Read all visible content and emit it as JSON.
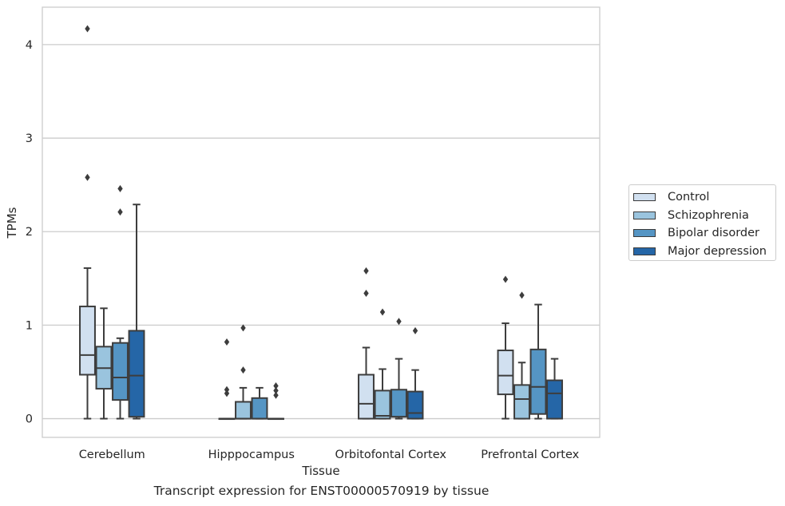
{
  "caption": "Transcript expression for ENST00000570919 by tissue",
  "chart_data": {
    "type": "box",
    "xlabel": "Tissue",
    "ylabel": "TPMs",
    "ylim": [
      -0.2,
      4.4
    ],
    "yticks": [
      0,
      1,
      2,
      3,
      4
    ],
    "grid": "horizontal",
    "legend_position": "right",
    "categories": [
      "Cerebellum",
      "Hipppocampus",
      "Orbitofontal Cortex",
      "Prefrontal Cortex"
    ],
    "series": [
      {
        "name": "Control",
        "color": "#d1e0f0",
        "boxes": [
          {
            "whisker_low": 0,
            "q1": 0.47,
            "median": 0.68,
            "q3": 1.2,
            "whisker_high": 1.61,
            "outliers": [
              2.58,
              4.17
            ]
          },
          {
            "whisker_low": 0,
            "q1": 0,
            "median": 0,
            "q3": 0,
            "whisker_high": 0,
            "outliers": [
              0.27,
              0.31,
              0.82
            ]
          },
          {
            "whisker_low": 0,
            "q1": 0,
            "median": 0.16,
            "q3": 0.47,
            "whisker_high": 0.76,
            "outliers": [
              1.34,
              1.58
            ]
          },
          {
            "whisker_low": 0,
            "q1": 0.26,
            "median": 0.46,
            "q3": 0.73,
            "whisker_high": 1.02,
            "outliers": [
              1.49
            ]
          }
        ]
      },
      {
        "name": "Schizophrenia",
        "color": "#9ac4de",
        "boxes": [
          {
            "whisker_low": 0,
            "q1": 0.32,
            "median": 0.54,
            "q3": 0.77,
            "whisker_high": 1.18,
            "outliers": []
          },
          {
            "whisker_low": 0,
            "q1": 0,
            "median": 0,
            "q3": 0.18,
            "whisker_high": 0.33,
            "outliers": [
              0.52,
              0.97
            ]
          },
          {
            "whisker_low": 0,
            "q1": 0,
            "median": 0.03,
            "q3": 0.3,
            "whisker_high": 0.53,
            "outliers": [
              1.14
            ]
          },
          {
            "whisker_low": 0,
            "q1": 0,
            "median": 0.21,
            "q3": 0.36,
            "whisker_high": 0.6,
            "outliers": [
              1.32
            ]
          }
        ]
      },
      {
        "name": "Bipolar disorder",
        "color": "#5595c4",
        "boxes": [
          {
            "whisker_low": 0,
            "q1": 0.2,
            "median": 0.44,
            "q3": 0.81,
            "whisker_high": 0.86,
            "outliers": [
              2.21,
              2.46
            ]
          },
          {
            "whisker_low": 0,
            "q1": 0,
            "median": 0,
            "q3": 0.22,
            "whisker_high": 0.33,
            "outliers": []
          },
          {
            "whisker_low": 0,
            "q1": 0.02,
            "median": 0.02,
            "q3": 0.31,
            "whisker_high": 0.64,
            "outliers": [
              1.04
            ]
          },
          {
            "whisker_low": 0,
            "q1": 0.05,
            "median": 0.34,
            "q3": 0.74,
            "whisker_high": 1.22,
            "outliers": []
          }
        ]
      },
      {
        "name": "Major depression",
        "color": "#2566a7",
        "boxes": [
          {
            "whisker_low": 0,
            "q1": 0.02,
            "median": 0.46,
            "q3": 0.94,
            "whisker_high": 2.29,
            "outliers": []
          },
          {
            "whisker_low": 0,
            "q1": 0,
            "median": 0,
            "q3": 0,
            "whisker_high": 0,
            "outliers": [
              0.25,
              0.3,
              0.35
            ]
          },
          {
            "whisker_low": 0,
            "q1": 0,
            "median": 0.06,
            "q3": 0.29,
            "whisker_high": 0.52,
            "outliers": [
              0.94
            ]
          },
          {
            "whisker_low": 0,
            "q1": 0,
            "median": 0.27,
            "q3": 0.41,
            "whisker_high": 0.64,
            "outliers": []
          }
        ]
      }
    ]
  }
}
